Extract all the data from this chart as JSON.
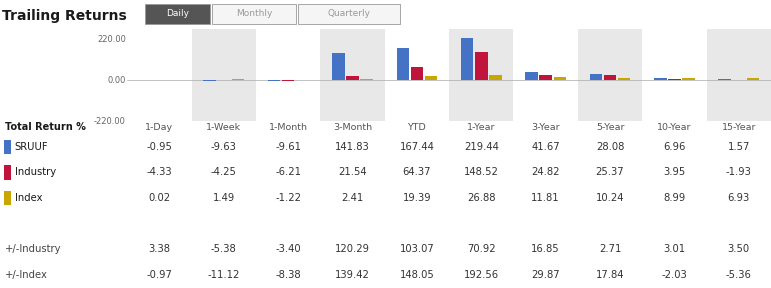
{
  "title": "Trailing Returns",
  "columns": [
    "1-Day",
    "1-Week",
    "1-Month",
    "3-Month",
    "YTD",
    "1-Year",
    "3-Year",
    "5-Year",
    "10-Year",
    "15-Year"
  ],
  "colors": {
    "SRUUF": "#4472C4",
    "Industry": "#C0143C",
    "Index": "#C8A800"
  },
  "table_data": {
    "SRUUF": [
      -0.95,
      -9.63,
      -9.61,
      141.83,
      167.44,
      219.44,
      41.67,
      28.08,
      6.96,
      1.57
    ],
    "Industry": [
      -4.33,
      -4.25,
      -6.21,
      21.54,
      64.37,
      148.52,
      24.82,
      25.37,
      3.95,
      -1.93
    ],
    "Index": [
      0.02,
      1.49,
      -1.22,
      2.41,
      19.39,
      26.88,
      11.81,
      10.24,
      8.99,
      6.93
    ],
    "+/-Industry": [
      3.38,
      -5.38,
      -3.4,
      120.29,
      103.07,
      70.92,
      16.85,
      2.71,
      3.01,
      3.5
    ],
    "+/-Index": [
      -0.97,
      -11.12,
      -8.38,
      139.42,
      148.05,
      192.56,
      29.87,
      17.84,
      -2.03,
      -5.36
    ]
  },
  "chart_bg_colors": [
    "#ffffff",
    "#e8e8e8",
    "#ffffff",
    "#e8e8e8",
    "#ffffff",
    "#e8e8e8",
    "#ffffff",
    "#e8e8e8",
    "#ffffff",
    "#e8e8e8"
  ],
  "ylim": [
    -220,
    270
  ],
  "yticks": [
    220.0,
    0.0,
    -220.0
  ],
  "row_labels": [
    "SRUUF",
    "Industry",
    "Index",
    "",
    "+/-Industry",
    "+/-Index"
  ],
  "row_bg": [
    "#f0f0f0",
    "#ffffff",
    "#f0f0f0",
    "#ffffff",
    "#f0f0f0",
    "#ffffff"
  ]
}
